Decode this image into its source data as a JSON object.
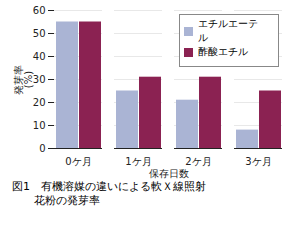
{
  "chart_data": {
    "type": "bar",
    "title": "図1　有機溶媒の違いによる軟Ｘ線照射",
    "subtitle": "　　花粉の発芽率",
    "xlabel": "保存日数",
    "ylabel": "発芽率\n(%)",
    "categories": [
      "0ケ月",
      "1ケ月",
      "2ケ月",
      "3ケ月"
    ],
    "series": [
      {
        "name": "エチルエーテル",
        "color": "#aab4d4",
        "values": [
          55,
          25,
          21,
          8
        ]
      },
      {
        "name": "酢酸エチル",
        "color": "#8b2252",
        "values": [
          55,
          31,
          31,
          25
        ]
      }
    ],
    "ylim": [
      0,
      60
    ],
    "yticks": [
      0,
      10,
      20,
      30,
      40,
      50,
      60
    ],
    "grid": true,
    "legend": "upper right"
  }
}
